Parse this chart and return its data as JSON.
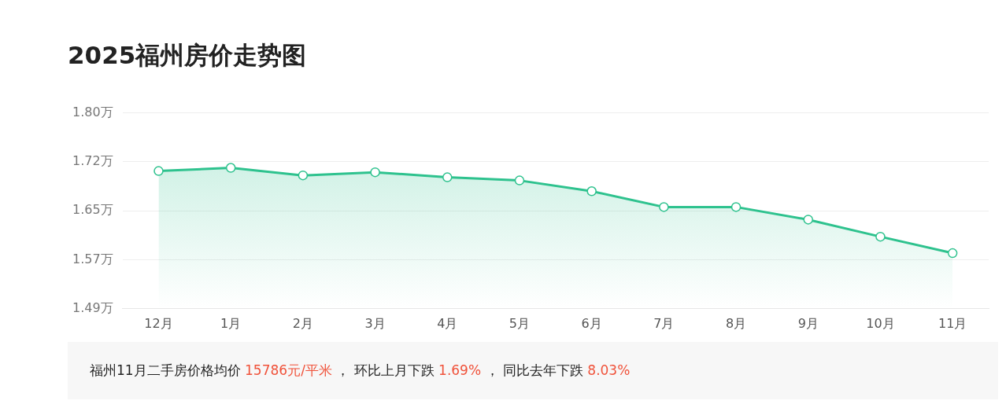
{
  "chart_data": {
    "type": "area",
    "title": "2025福州房价走势图",
    "categories": [
      "12月",
      "1月",
      "2月",
      "3月",
      "4月",
      "5月",
      "6月",
      "7月",
      "8月",
      "9月",
      "10月",
      "11月"
    ],
    "series": [
      {
        "color": "#2ec28e",
        "values": [
          1.708,
          1.713,
          1.701,
          1.706,
          1.698,
          1.693,
          1.676,
          1.651,
          1.651,
          1.631,
          1.604,
          1.578
        ]
      }
    ],
    "ylim": [
      1.49,
      1.8
    ],
    "yticks": [
      {
        "value": 1.49,
        "label": "1.49万"
      },
      {
        "value": 1.5675,
        "label": "1.57万"
      },
      {
        "value": 1.645,
        "label": "1.65万"
      },
      {
        "value": 1.7225,
        "label": "1.72万"
      },
      {
        "value": 1.8,
        "label": "1.80万"
      }
    ],
    "grid": "y",
    "legend": false,
    "marker": "circle",
    "annotations": [
      "福州11月二手房价格均价 15786元/平米 ， 环比上月下跌 1.69% ， 同比去年下跌 8.03%"
    ]
  }
}
